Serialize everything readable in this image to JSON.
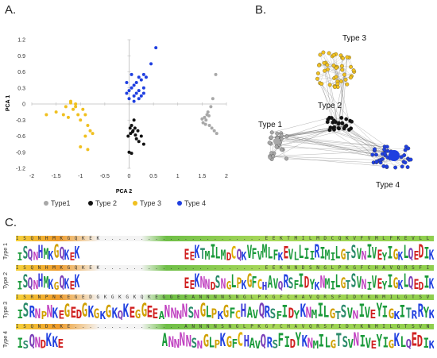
{
  "panels": {
    "a": "A.",
    "b": "B.",
    "c": "C."
  },
  "chart_data": [
    {
      "type": "scatter",
      "title": "",
      "xlabel": "PCA 2",
      "ylabel": "PCA 1",
      "xlim": [
        -2,
        2
      ],
      "ylim": [
        -1.2,
        1.2
      ],
      "xticks": [
        "-2",
        "-1.5",
        "-1",
        "-0.5",
        "0",
        "0.5",
        "1",
        "1.5",
        "2"
      ],
      "yticks": [
        "1.2",
        "0.9",
        "0.6",
        "0.3",
        "0",
        "-0.3",
        "-0.6",
        "-0.9",
        "-1.2"
      ],
      "legend_position": "bottom",
      "series": [
        {
          "name": "Type1",
          "color": "#a8a8a8",
          "points": [
            [
              1.55,
              -0.25
            ],
            [
              1.6,
              -0.2
            ],
            [
              1.52,
              -0.35
            ],
            [
              1.58,
              -0.3
            ],
            [
              1.65,
              -0.4
            ],
            [
              1.7,
              -0.45
            ],
            [
              1.75,
              -0.5
            ],
            [
              1.62,
              -0.15
            ],
            [
              1.68,
              -0.05
            ],
            [
              1.72,
              0.1
            ],
            [
              1.78,
              0.55
            ],
            [
              1.8,
              -0.55
            ],
            [
              1.5,
              -0.28
            ],
            [
              1.57,
              -0.38
            ],
            [
              1.64,
              -0.22
            ]
          ]
        },
        {
          "name": "Type 2",
          "color": "#111111",
          "points": [
            [
              0.0,
              -0.9
            ],
            [
              0.05,
              -0.92
            ],
            [
              -0.02,
              -0.6
            ],
            [
              0.03,
              -0.55
            ],
            [
              0.08,
              -0.5
            ],
            [
              0.12,
              -0.45
            ],
            [
              0.15,
              -0.65
            ],
            [
              0.2,
              -0.7
            ],
            [
              0.25,
              -0.6
            ],
            [
              0.05,
              -0.4
            ],
            [
              0.1,
              -0.3
            ],
            [
              0.02,
              -0.45
            ],
            [
              0.18,
              -0.5
            ],
            [
              0.3,
              -0.75
            ],
            [
              0.07,
              -0.52
            ],
            [
              0.13,
              -0.58
            ]
          ]
        },
        {
          "name": "Type 3",
          "color": "#f0c020",
          "points": [
            [
              -1.7,
              -0.2
            ],
            [
              -1.5,
              -0.15
            ],
            [
              -1.3,
              -0.05
            ],
            [
              -1.2,
              0.05
            ],
            [
              -1.1,
              0.0
            ],
            [
              -1.15,
              -0.1
            ],
            [
              -1.05,
              -0.2
            ],
            [
              -1.0,
              -0.3
            ],
            [
              -0.95,
              -0.1
            ],
            [
              -0.9,
              -0.2
            ],
            [
              -1.25,
              -0.25
            ],
            [
              -0.85,
              -0.4
            ],
            [
              -0.8,
              -0.5
            ],
            [
              -0.9,
              -0.6
            ],
            [
              -1.0,
              -0.8
            ],
            [
              -0.85,
              -0.85
            ],
            [
              -0.75,
              -0.55
            ],
            [
              -1.1,
              -0.05
            ],
            [
              -1.2,
              0.02
            ],
            [
              -1.35,
              -0.2
            ]
          ]
        },
        {
          "name": "Type 4",
          "color": "#1f3fe0",
          "points": [
            [
              0.55,
              1.05
            ],
            [
              0.45,
              0.75
            ],
            [
              0.3,
              0.55
            ],
            [
              0.35,
              0.5
            ],
            [
              0.25,
              0.45
            ],
            [
              0.2,
              0.5
            ],
            [
              0.15,
              0.4
            ],
            [
              0.1,
              0.35
            ],
            [
              0.05,
              0.3
            ],
            [
              0.0,
              0.25
            ],
            [
              -0.05,
              0.2
            ],
            [
              0.1,
              0.15
            ],
            [
              0.2,
              0.25
            ],
            [
              0.3,
              0.3
            ],
            [
              0.25,
              0.15
            ],
            [
              0.15,
              0.2
            ],
            [
              -0.05,
              0.4
            ],
            [
              0.05,
              0.55
            ],
            [
              0.0,
              0.1
            ],
            [
              0.1,
              0.05
            ],
            [
              0.2,
              0.1
            ],
            [
              0.3,
              0.2
            ]
          ]
        }
      ]
    },
    {
      "type": "network",
      "annotations": [
        "Type 1",
        "Type 2",
        "Type 3",
        "Type 4"
      ],
      "groups": [
        {
          "name": "Type 1",
          "color": "#a8a8a8"
        },
        {
          "name": "Type 2",
          "color": "#111111"
        },
        {
          "name": "Type 3",
          "color": "#f0c020"
        },
        {
          "name": "Type 4",
          "color": "#1f3fe0"
        }
      ]
    }
  ],
  "logo": {
    "rows": [
      {
        "name": "Type 1",
        "strip": "I S Q N H M K G Q K E K . . . . . . . . . . . . . . . . . . . . . . E E K T M I L M D C Q K V F V M L F K E V L L I I R I M I L G T S V N I V E Y I G K L Q E D I K",
        "letters": "ISQNHMKGQKEK                    EEKTMILMDCQKVFVMLFKEVLLIIRIMILGTSVNIVEYIGKLQEDIK"
      },
      {
        "name": "Type 2",
        "strip": "I S Q N H M K G Q K E K . . . . . . . . . . . . . . . . . . . . . . E E K N N D S N G L P K G F C H A V Q R S F I D Y K N M I L G T S V N I V E Y I G K L Q E D I K",
        "letters": "ISQNHMKGQKEK                    EEKNNDSNGLPKGFCHAVQRSFIDYKNMILGTSVNIVEYIGKLQEDIK"
      },
      {
        "name": "Type 3",
        "strip": "I S R N P N K E G E D G K G K G K Q K E G G E E A N N N N S N G L P K G F C H A V Q R S F I D Y K N M I L G T S V N I V E Y I G K I T R R Y K",
        "letters": "ISRNPNKEGEDGKGKGKQKEGGEEANNNNSNGLPKGFCHAVQRSFIDYKNMILGTSVNIVEYIGKITRRYK"
      },
      {
        "name": "Type 4",
        "strip": "I S Q N D K K E . . . . . . . . . . . . . . . A N N N N S N G L P K G F C H A V Q R S F I D Y K N M I L G T S V N I V E Y I G K L Q E D I K",
        "letters": "ISQNDKKE                 ANNNNSNGLPKGFCHAVQRSFIDYKNMILGTSVNIVEYIGKLQEDIK"
      }
    ],
    "colors": {
      "I": "#1a9a3a",
      "L": "#1a9a3a",
      "V": "#1a9a3a",
      "M": "#1a9a3a",
      "F": "#1a9a3a",
      "A": "#1a9a3a",
      "S": "#2a8a6a",
      "T": "#2a8a6a",
      "Q": "#7a3fb8",
      "N": "#c040c0",
      "H": "#3a3ad8",
      "K": "#2040e0",
      "R": "#2040e0",
      "G": "#d0a000",
      "P": "#d0a000",
      "E": "#d02020",
      "D": "#d02020",
      "C": "#e0b000",
      "Y": "#1a9a3a",
      "W": "#1a9a3a"
    }
  }
}
